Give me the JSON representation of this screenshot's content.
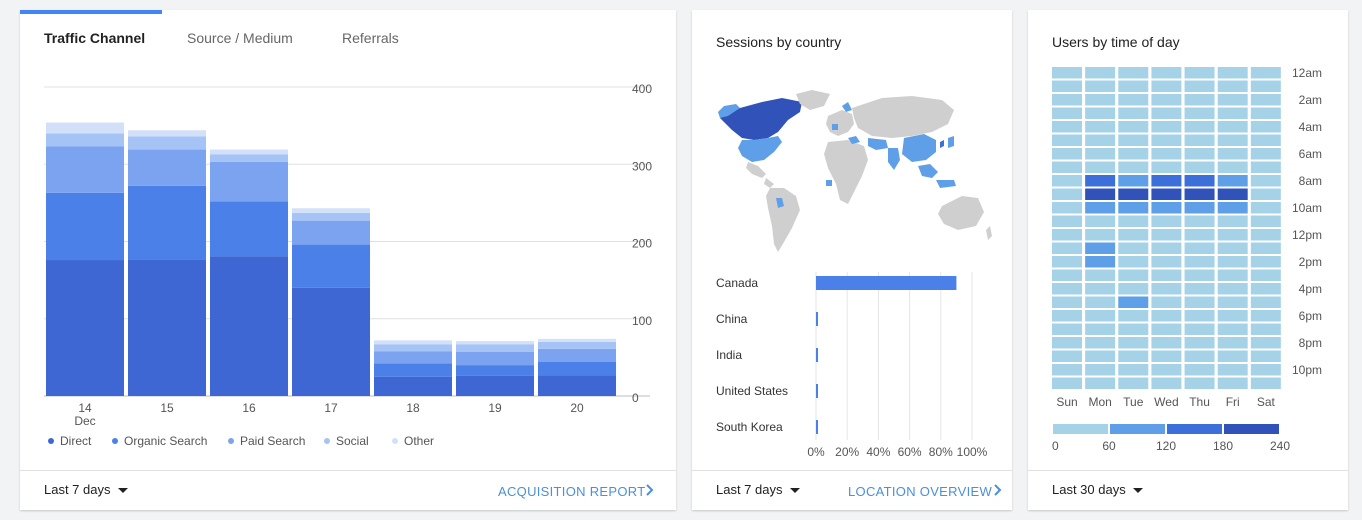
{
  "traffic_card": {
    "tabs": [
      {
        "label": "Traffic Channel",
        "active": true
      },
      {
        "label": "Source / Medium",
        "active": false
      },
      {
        "label": "Referrals",
        "active": false
      }
    ],
    "footer": {
      "range_label": "Last 7 days",
      "link_label": "ACQUISITION REPORT"
    }
  },
  "country_card": {
    "title": "Sessions by country",
    "footer": {
      "range_label": "Last 7 days",
      "link_label": "LOCATION OVERVIEW"
    }
  },
  "time_card": {
    "title": "Users by time of day",
    "footer": {
      "range_label": "Last 30 days"
    }
  },
  "colors": {
    "direct": "#3f67d4",
    "organic": "#4a80e8",
    "paid": "#7ba3f0",
    "social": "#a5c3f5",
    "other": "#d2e0f9",
    "country_bar": "#4a80e8",
    "heat": [
      "#a6d2e8",
      "#5e9fe8",
      "#3d6fdb",
      "#3152b8"
    ]
  },
  "chart_data": [
    {
      "type": "bar",
      "stacked": true,
      "categories": [
        "14",
        "15",
        "16",
        "17",
        "18",
        "19",
        "20"
      ],
      "first_category_sublabel": "Dec",
      "y_ticks": [
        "400",
        "300",
        "200",
        "100",
        "0"
      ],
      "ylim": [
        0,
        400
      ],
      "series": [
        {
          "name": "Direct",
          "values": [
            176,
            177,
            181,
            140,
            25,
            26,
            27
          ]
        },
        {
          "name": "Organic Search",
          "values": [
            87,
            95,
            71,
            56,
            17,
            14,
            17
          ]
        },
        {
          "name": "Paid Search",
          "values": [
            60,
            47,
            51,
            31,
            16,
            17,
            17
          ]
        },
        {
          "name": "Social",
          "values": [
            17,
            17,
            10,
            10,
            9,
            10,
            9
          ]
        },
        {
          "name": "Other",
          "values": [
            14,
            8,
            6,
            6,
            5,
            4,
            4
          ]
        }
      ],
      "legend_position": "bottom-left"
    },
    {
      "type": "bar",
      "orientation": "horizontal",
      "categories": [
        "Canada",
        "China",
        "India",
        "United States",
        "South Korea"
      ],
      "values": [
        0.9,
        0.01,
        0.01,
        0.01,
        0.01
      ],
      "x_ticks": [
        "0%",
        "20%",
        "40%",
        "60%",
        "80%",
        "100%"
      ],
      "xlim": [
        0,
        1
      ]
    },
    {
      "type": "heatmap",
      "columns": [
        "Sun",
        "Mon",
        "Tue",
        "Wed",
        "Thu",
        "Fri",
        "Sat"
      ],
      "row_labels": [
        "12am",
        "2am",
        "4am",
        "6am",
        "8am",
        "10am",
        "12pm",
        "2pm",
        "4pm",
        "6pm",
        "8pm",
        "10pm"
      ],
      "scale_ticks": [
        "0",
        "60",
        "120",
        "180",
        "240"
      ],
      "scale_max": 240,
      "values_by_hour": [
        [
          20,
          20,
          20,
          20,
          20,
          20,
          20
        ],
        [
          20,
          20,
          20,
          20,
          20,
          20,
          20
        ],
        [
          20,
          20,
          20,
          20,
          20,
          20,
          20
        ],
        [
          20,
          20,
          20,
          20,
          20,
          20,
          20
        ],
        [
          20,
          20,
          20,
          20,
          20,
          20,
          20
        ],
        [
          20,
          20,
          20,
          20,
          20,
          20,
          20
        ],
        [
          20,
          20,
          20,
          20,
          20,
          20,
          20
        ],
        [
          20,
          20,
          20,
          20,
          20,
          20,
          20
        ],
        [
          20,
          140,
          100,
          140,
          140,
          100,
          20
        ],
        [
          20,
          200,
          200,
          200,
          200,
          200,
          20
        ],
        [
          20,
          100,
          100,
          100,
          100,
          100,
          20
        ],
        [
          20,
          20,
          20,
          20,
          20,
          20,
          20
        ],
        [
          20,
          20,
          20,
          20,
          20,
          20,
          20
        ],
        [
          20,
          100,
          20,
          20,
          20,
          20,
          20
        ],
        [
          20,
          100,
          20,
          20,
          20,
          20,
          20
        ],
        [
          20,
          20,
          20,
          20,
          20,
          20,
          20
        ],
        [
          20,
          20,
          20,
          20,
          20,
          20,
          20
        ],
        [
          20,
          20,
          100,
          20,
          20,
          20,
          20
        ],
        [
          20,
          20,
          20,
          20,
          20,
          20,
          20
        ],
        [
          20,
          20,
          20,
          20,
          20,
          20,
          20
        ],
        [
          20,
          20,
          20,
          20,
          20,
          20,
          20
        ],
        [
          20,
          20,
          20,
          20,
          20,
          20,
          20
        ],
        [
          20,
          20,
          20,
          20,
          20,
          20,
          20
        ],
        [
          20,
          20,
          20,
          20,
          20,
          20,
          20
        ]
      ]
    }
  ]
}
